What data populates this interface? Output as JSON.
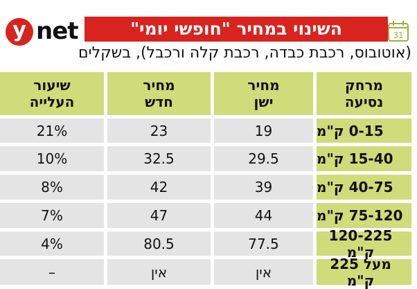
{
  "logo": {
    "mark": "y",
    "text": "net"
  },
  "title": "השינוי במחיר \"חופשי יומי\"",
  "calendar_icon": {
    "name": "calendar-icon",
    "day": "31"
  },
  "subtitle": "(אוטובוס, רכבת כבדה, רכבת קלה ורכבל), בשקלים",
  "colors": {
    "brand_red": "#d8231f",
    "header_green": "#cedc79",
    "row_gray": "#e4e4e4"
  },
  "table": {
    "headers": [
      {
        "line1": "מרחק",
        "line2": "נסיעה"
      },
      {
        "line1": "מחיר",
        "line2": "ישן"
      },
      {
        "line1": "מחיר",
        "line2": "חדש"
      },
      {
        "line1": "שיעור",
        "line2": "העלייה"
      }
    ],
    "rows": [
      {
        "distance": "0-15 ק\"מ",
        "old_price": "19",
        "new_price": "23",
        "increase": "21%"
      },
      {
        "distance": "15-40 ק\"מ",
        "old_price": "29.5",
        "new_price": "32.5",
        "increase": "10%"
      },
      {
        "distance": "40-75 ק\"מ",
        "old_price": "39",
        "new_price": "42",
        "increase": "8%"
      },
      {
        "distance": "75-120 ק\"מ",
        "old_price": "44",
        "new_price": "47",
        "increase": "7%"
      },
      {
        "distance": "120-225 ק\"מ",
        "old_price": "77.5",
        "new_price": "80.5",
        "increase": "4%"
      },
      {
        "distance": "מעל 225 ק\"מ",
        "old_price": "אין",
        "new_price": "אין",
        "increase": "–"
      }
    ]
  }
}
